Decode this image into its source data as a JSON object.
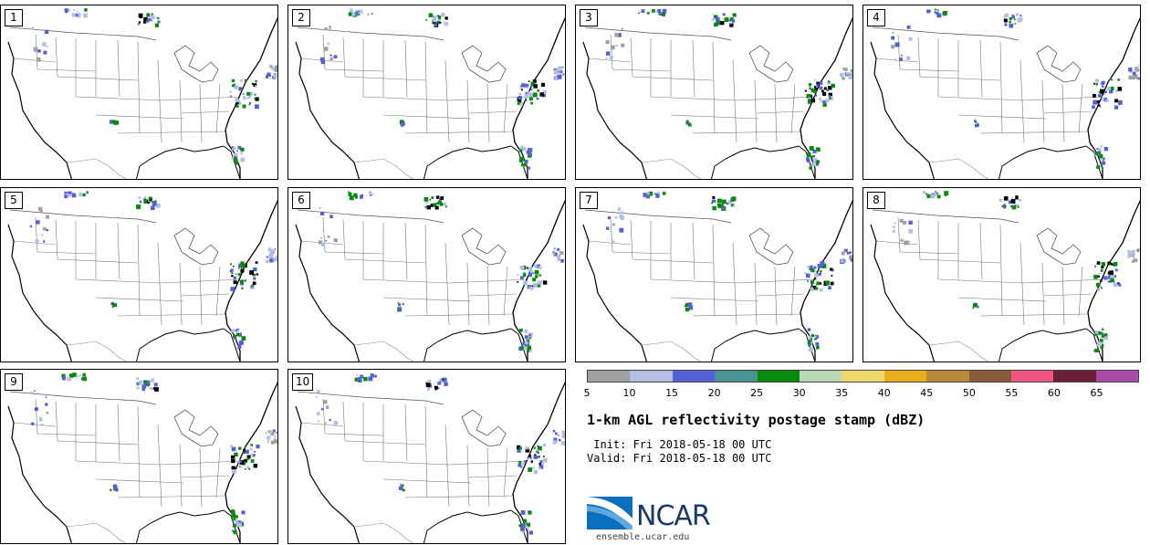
{
  "panels": [
    {
      "label": "1"
    },
    {
      "label": "2"
    },
    {
      "label": "3"
    },
    {
      "label": "4"
    },
    {
      "label": "5"
    },
    {
      "label": "6"
    },
    {
      "label": "7"
    },
    {
      "label": "8"
    },
    {
      "label": "9"
    },
    {
      "label": "10"
    }
  ],
  "colorbar": {
    "colors": [
      "#a0a0a0",
      "#b4bfe8",
      "#5560d6",
      "#4b9393",
      "#0a8a0a",
      "#b8d8b8",
      "#efd96a",
      "#e9ae1c",
      "#b98a3a",
      "#8a5a3c",
      "#ef5581",
      "#6b1e3a",
      "#a84aa8"
    ],
    "ticks": [
      "5",
      "10",
      "15",
      "20",
      "25",
      "30",
      "35",
      "40",
      "45",
      "50",
      "55",
      "60",
      "65"
    ]
  },
  "title": "1-km AGL reflectivity postage stamp (dBZ)",
  "init": " Init: Fri 2018-05-18 00 UTC",
  "valid": "Valid: Fri 2018-05-18 00 UTC",
  "logo": {
    "text": "NCAR",
    "site": "ensemble.ucar.edu"
  }
}
